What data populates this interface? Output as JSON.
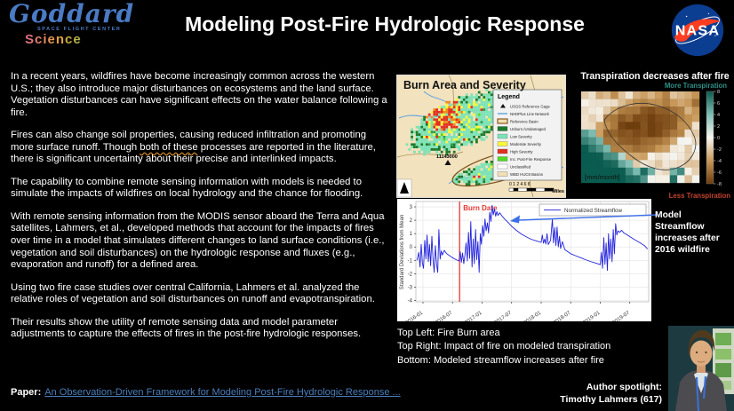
{
  "header": {
    "title": "Modeling Post-Fire Hydrologic Response",
    "goddard": {
      "name": "Goddard",
      "subtitle": "SPACE FLIGHT CENTER",
      "science": "Science"
    },
    "nasa_logo_text": "NASA"
  },
  "body": {
    "p1": "In a recent years, wildfires have become increasingly common across the western U.S.; they also introduce major disturbances on ecosystems and the land surface. Vegetation disturbances can have significant effects on the water balance following a fire.",
    "p2_before": "Fires can also change soil properties, causing reduced infiltration and promoting more surface runoff. Though ",
    "p2_squiggle": "both of these",
    "p2_after": " processes are reported in the literature, there is significant uncertainty about their precise and interlinked impacts.",
    "p3": "The capability to combine remote sensing information with models is needed to simulate the impacts of wildfires on local hydrology and the chance for flooding.",
    "p4": "With remote sensing information from the MODIS sensor aboard the Terra and Aqua satellites, Lahmers, et al., developed methods that account for the impacts of fires over time in a model that simulates different changes to land surface conditions (i.e., vegetation and soil disturbances) on the hydrologic response and fluxes (e.g., evaporation and runoff) for a defined area.",
    "p5": "Using two fire case studies over central California, Lahmers et al. analyzed the relative roles of vegetation and soil disturbances on runoff and evapotranspiration.",
    "p6": "Their results show the utility of remote sensing data and model parameter adjustments to capture the effects of fires in the post-fire hydrologic responses.",
    "paper_label": "Paper:",
    "paper_link": "An Observation-Driven Framework for Modeling Post-Fire Hydrologic Response ..."
  },
  "burn_map": {
    "title": "Burn Area and Severity",
    "legend": {
      "title": "Legend",
      "items": [
        {
          "label": "USGS Reference Gage",
          "swatch": "triangle",
          "color": "#111111"
        },
        {
          "label": "NHDPlus Line Network",
          "swatch": "line",
          "color": "#6aaede"
        },
        {
          "label": "Reference Basin",
          "swatch": "outline",
          "color": "#8a5a20"
        },
        {
          "label": "Unburn./Undamaged",
          "swatch": "fill",
          "color": "#1d7a2c"
        },
        {
          "label": "Low Severity",
          "swatch": "fill",
          "color": "#7de3b8"
        },
        {
          "label": "Moderate Severity",
          "swatch": "fill",
          "color": "#f8f83a"
        },
        {
          "label": "High Severity",
          "swatch": "fill",
          "color": "#e23020"
        },
        {
          "label": "Inc. Post-Fire Response",
          "swatch": "fill",
          "color": "#52d926"
        },
        {
          "label": "Unclassified",
          "swatch": "fill",
          "color": "#ffffff"
        },
        {
          "label": "WBD HUC8 Basins",
          "swatch": "fill",
          "color": "#f2dfb5"
        }
      ]
    },
    "gage_label": "11143000",
    "scale_numbers": "0 1 2   4     6     8",
    "scale_unit": "Miles"
  },
  "transpiration": {
    "title": "Transpiration decreases after fire",
    "more_label": "More Transpiration",
    "less_label": "Less Transpiration",
    "units_label": "[mm/month]",
    "colorbar_ticks": [
      8,
      6,
      4,
      2,
      0,
      -2,
      -4,
      -6,
      -8
    ],
    "more_color": "#2e9186",
    "less_color": "#c44431"
  },
  "chart_data": {
    "type": "line",
    "title": "",
    "ylabel": "Standard Deviations from Mean",
    "xlim": [
      2015.88,
      2019.82
    ],
    "ylim": [
      -4.1,
      3.4
    ],
    "yticks": [
      3,
      2,
      1,
      0,
      -1,
      -2,
      -3,
      -4
    ],
    "xticks": [
      "2016-01",
      "2016-07",
      "2017-01",
      "2017-07",
      "2018-01",
      "2018-07",
      "2019-01",
      "2019-07"
    ],
    "xtick_values": [
      2016.0,
      2016.5,
      2017.0,
      2017.5,
      2018.0,
      2018.5,
      2019.0,
      2019.5
    ],
    "grid": true,
    "legend_position": "upper right",
    "burn_date_label": "Burn Date",
    "burn_date_x": 2016.62,
    "burn_date_color": "#e53935",
    "annotation": "Model Streamflow increases after 2016 wildfire",
    "series": [
      {
        "name": "Normalized Streamflow",
        "color": "#2222dd",
        "points": [
          [
            2015.9,
            -1.0
          ],
          [
            2015.93,
            -0.4
          ],
          [
            2015.95,
            -1.5
          ],
          [
            2015.97,
            0.2
          ],
          [
            2015.99,
            -1.2
          ],
          [
            2016.01,
            -1.6
          ],
          [
            2016.03,
            0.5
          ],
          [
            2016.05,
            -0.9
          ],
          [
            2016.07,
            0.9
          ],
          [
            2016.09,
            -1.1
          ],
          [
            2016.11,
            0.2
          ],
          [
            2016.13,
            -1.4
          ],
          [
            2016.15,
            0.8
          ],
          [
            2016.17,
            -0.9
          ],
          [
            2016.19,
            -1.9
          ],
          [
            2016.21,
            0.1
          ],
          [
            2016.23,
            -1.3
          ],
          [
            2016.25,
            -1.9
          ],
          [
            2016.27,
            1.3
          ],
          [
            2016.29,
            -0.9
          ],
          [
            2016.31,
            -0.3
          ],
          [
            2016.33,
            -0.6
          ],
          [
            2016.36,
            -0.25
          ],
          [
            2016.4,
            -0.5
          ],
          [
            2016.45,
            -0.65
          ],
          [
            2016.5,
            -0.8
          ],
          [
            2016.56,
            -0.95
          ],
          [
            2016.61,
            -1.05
          ],
          [
            2016.63,
            -0.35
          ],
          [
            2016.65,
            -1.15
          ],
          [
            2016.67,
            -0.45
          ],
          [
            2016.69,
            -1.25
          ],
          [
            2016.71,
            -0.6
          ],
          [
            2016.73,
            0.3
          ],
          [
            2016.75,
            -1.05
          ],
          [
            2016.77,
            1.1
          ],
          [
            2016.79,
            -0.85
          ],
          [
            2016.81,
            1.9
          ],
          [
            2016.83,
            -1.5
          ],
          [
            2016.85,
            0.6
          ],
          [
            2016.87,
            -1.25
          ],
          [
            2016.89,
            1.3
          ],
          [
            2016.91,
            -0.95
          ],
          [
            2016.93,
            0.4
          ],
          [
            2016.95,
            -1.9
          ],
          [
            2016.97,
            1.0
          ],
          [
            2016.99,
            0.2
          ],
          [
            2017.01,
            1.6
          ],
          [
            2017.03,
            0.8
          ],
          [
            2017.05,
            2.1
          ],
          [
            2017.07,
            1.2
          ],
          [
            2017.09,
            1.8
          ],
          [
            2017.11,
            1.05
          ],
          [
            2017.13,
            2.6
          ],
          [
            2017.15,
            1.9
          ],
          [
            2017.17,
            3.1
          ],
          [
            2017.19,
            2.4
          ],
          [
            2017.21,
            2.85
          ],
          [
            2017.23,
            2.3
          ],
          [
            2017.25,
            2.65
          ],
          [
            2017.27,
            2.35
          ],
          [
            2017.3,
            2.55
          ],
          [
            2017.34,
            2.3
          ],
          [
            2017.38,
            2.1
          ],
          [
            2017.44,
            1.85
          ],
          [
            2017.5,
            1.55
          ],
          [
            2017.58,
            1.25
          ],
          [
            2017.67,
            0.95
          ],
          [
            2017.75,
            0.75
          ],
          [
            2017.83,
            0.58
          ],
          [
            2017.92,
            0.45
          ],
          [
            2018.0,
            0.35
          ],
          [
            2018.02,
            0.9
          ],
          [
            2018.04,
            0.28
          ],
          [
            2018.06,
            0.6
          ],
          [
            2018.08,
            0.22
          ],
          [
            2018.1,
            1.0
          ],
          [
            2018.12,
            0.18
          ],
          [
            2018.16,
            0.5
          ],
          [
            2018.19,
            2.1
          ],
          [
            2018.21,
            0.3
          ],
          [
            2018.23,
            1.45
          ],
          [
            2018.25,
            0.1
          ],
          [
            2018.27,
            1.5
          ],
          [
            2018.29,
            0.0
          ],
          [
            2018.31,
            0.8
          ],
          [
            2018.33,
            -0.12
          ],
          [
            2018.36,
            0.4
          ],
          [
            2018.4,
            -0.2
          ],
          [
            2018.45,
            -0.35
          ],
          [
            2018.5,
            -0.5
          ],
          [
            2018.58,
            -0.65
          ],
          [
            2018.67,
            -0.8
          ],
          [
            2018.75,
            -0.95
          ],
          [
            2018.83,
            -1.08
          ],
          [
            2018.92,
            -1.2
          ],
          [
            2019.0,
            -1.32
          ],
          [
            2019.02,
            -0.4
          ],
          [
            2019.04,
            -1.6
          ],
          [
            2019.06,
            0.7
          ],
          [
            2019.08,
            -1.3
          ],
          [
            2019.1,
            0.3
          ],
          [
            2019.12,
            -1.75
          ],
          [
            2019.14,
            1.0
          ],
          [
            2019.16,
            -0.9
          ],
          [
            2019.18,
            0.6
          ],
          [
            2019.2,
            -1.1
          ],
          [
            2019.22,
            1.3
          ],
          [
            2019.24,
            -0.5
          ],
          [
            2019.26,
            1.75
          ],
          [
            2019.28,
            0.9
          ],
          [
            2019.3,
            1.2
          ],
          [
            2019.33,
            1.1
          ],
          [
            2019.36,
            1.25
          ],
          [
            2019.4,
            1.05
          ],
          [
            2019.45,
            0.92
          ],
          [
            2019.5,
            0.78
          ],
          [
            2019.58,
            0.55
          ],
          [
            2019.67,
            0.32
          ],
          [
            2019.75,
            0.1
          ],
          [
            2019.8,
            -0.15
          ]
        ]
      }
    ]
  },
  "captions": {
    "line1": "Top Left: Fire Burn area",
    "line2": "Top Right: Impact of fire on modeled transpiration",
    "line3": "Bottom: Modeled streamflow increases after fire"
  },
  "author": {
    "label": "Author spotlight:",
    "name": "Timothy Lahmers (617)"
  }
}
